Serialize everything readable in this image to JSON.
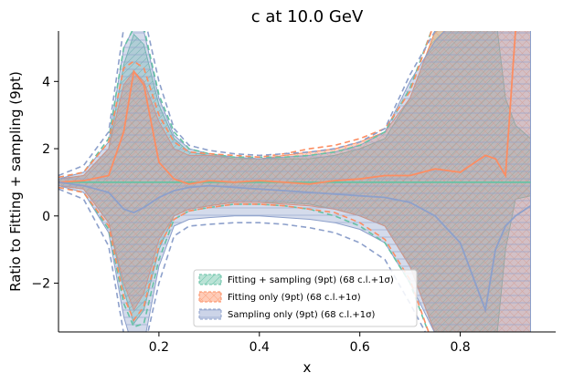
{
  "chart_data": {
    "type": "area",
    "title": "c at 10.0 GeV",
    "xlabel": "x",
    "ylabel": "Ratio to Fitting + sampling (9pt)",
    "xlim": [
      0.0,
      0.99
    ],
    "ylim": [
      -3.45,
      5.5
    ],
    "xticks": [
      0.2,
      0.4,
      0.6,
      0.8
    ],
    "xtick_labels": [
      "0.2",
      "0.4",
      "0.6",
      "0.8"
    ],
    "yticks": [
      -2,
      0,
      2,
      4
    ],
    "ytick_labels": [
      "−2",
      "0",
      "2",
      "4"
    ],
    "grid": false,
    "legend_position": "lower-center",
    "x": [
      0.0,
      0.05,
      0.1,
      0.13,
      0.15,
      0.17,
      0.2,
      0.23,
      0.26,
      0.3,
      0.35,
      0.4,
      0.45,
      0.5,
      0.55,
      0.6,
      0.65,
      0.7,
      0.75,
      0.8,
      0.85,
      0.87,
      0.89,
      0.91,
      0.94
    ],
    "series": [
      {
        "name": "Fitting + sampling (9pt) (68 c.l.+1σ)",
        "color": "#66c2a5",
        "hatch": "diagonal",
        "central": [
          1.0,
          1.0,
          1.0,
          1.0,
          1.0,
          1.0,
          1.0,
          1.0,
          1.0,
          1.0,
          1.0,
          1.0,
          1.0,
          1.0,
          1.0,
          1.0,
          1.0,
          1.0,
          1.0,
          1.0,
          1.0,
          1.0,
          1.0,
          1.0,
          1.0
        ],
        "upper": [
          1.1,
          1.2,
          2.0,
          4.5,
          5.4,
          5.1,
          3.3,
          2.3,
          1.9,
          1.8,
          1.7,
          1.7,
          1.7,
          1.7,
          1.8,
          2.0,
          2.3,
          3.5,
          5.5,
          6.0,
          6.0,
          6.0,
          3.5,
          2.7,
          2.3
        ],
        "lower": [
          0.9,
          0.8,
          -0.2,
          -2.2,
          -3.2,
          -2.8,
          -1.0,
          0.0,
          0.2,
          0.3,
          0.4,
          0.4,
          0.4,
          0.35,
          0.2,
          0.0,
          -0.3,
          -1.5,
          -3.5,
          -4.0,
          -4.0,
          -4.0,
          -1.0,
          0.5,
          0.6
        ],
        "dashed_upper": [
          1.15,
          1.3,
          2.3,
          5.0,
          5.6,
          5.6,
          3.6,
          2.5,
          2.0,
          1.85,
          1.75,
          1.75,
          1.75,
          1.8,
          1.9,
          2.1,
          2.5,
          3.8,
          5.8,
          6.0,
          6.0,
          6.0,
          6.0,
          6.0,
          6.0
        ],
        "dashed_lower": [
          0.85,
          0.7,
          -0.4,
          -2.6,
          -3.3,
          -3.2,
          -1.3,
          -0.1,
          0.15,
          0.25,
          0.35,
          0.35,
          0.3,
          0.2,
          0.0,
          -0.3,
          -0.8,
          -2.0,
          -4.0,
          -4.0,
          -4.0,
          -4.0,
          -4.0,
          -4.0,
          -4.0
        ]
      },
      {
        "name": "Fitting only (9pt) (68 c.l.+1σ)",
        "color": "#fc8d62",
        "hatch": "cross",
        "central": [
          1.0,
          1.05,
          1.2,
          2.5,
          4.3,
          3.9,
          1.6,
          1.1,
          0.95,
          1.05,
          1.0,
          1.05,
          1.0,
          0.95,
          1.05,
          1.1,
          1.2,
          1.2,
          1.4,
          1.3,
          1.8,
          1.7,
          1.2,
          5.5,
          6.0
        ],
        "upper": [
          1.1,
          1.2,
          2.0,
          3.9,
          4.3,
          4.0,
          2.8,
          2.0,
          1.8,
          1.8,
          1.75,
          1.7,
          1.8,
          1.9,
          2.0,
          2.2,
          2.5,
          3.5,
          5.5,
          6.0,
          6.0,
          6.0,
          6.0,
          6.0,
          6.0
        ],
        "lower": [
          0.9,
          0.8,
          -0.2,
          -2.0,
          -2.8,
          -2.3,
          -0.7,
          0.0,
          0.2,
          0.3,
          0.4,
          0.4,
          0.35,
          0.3,
          0.2,
          0.0,
          -0.3,
          -1.5,
          -3.5,
          -4.0,
          -4.0,
          -4.0,
          -4.0,
          -4.0,
          -4.0
        ],
        "dashed_upper": [
          1.15,
          1.3,
          2.2,
          4.4,
          4.6,
          4.4,
          3.0,
          2.2,
          1.9,
          1.85,
          1.8,
          1.75,
          1.85,
          2.0,
          2.1,
          2.3,
          2.6,
          3.7,
          5.8,
          6.0,
          6.0,
          6.0,
          6.0,
          6.0,
          6.0
        ],
        "dashed_lower": [
          0.85,
          0.7,
          -0.3,
          -2.4,
          -3.1,
          -2.7,
          -0.9,
          -0.1,
          0.15,
          0.25,
          0.35,
          0.35,
          0.3,
          0.2,
          0.1,
          -0.2,
          -0.7,
          -1.9,
          -4.0,
          -4.0,
          -4.0,
          -4.0,
          -4.0,
          -4.0,
          -4.0
        ]
      },
      {
        "name": "Sampling only (9pt) (68 c.l.+1σ)",
        "color": "#8da0cb",
        "hatch": "horizontal",
        "central": [
          1.0,
          0.9,
          0.7,
          0.2,
          0.1,
          0.25,
          0.55,
          0.75,
          0.85,
          0.9,
          0.85,
          0.8,
          0.75,
          0.7,
          0.65,
          0.6,
          0.55,
          0.4,
          0.0,
          -0.8,
          -2.8,
          -1.0,
          -0.3,
          0.0,
          0.3
        ],
        "upper": [
          1.1,
          1.3,
          2.2,
          5.0,
          5.6,
          5.5,
          3.5,
          2.4,
          2.0,
          1.85,
          1.75,
          1.7,
          1.75,
          1.8,
          1.9,
          2.1,
          2.5,
          4.0,
          5.2,
          6.0,
          6.0,
          6.0,
          6.0,
          6.0,
          6.0
        ],
        "lower": [
          0.9,
          0.7,
          -0.5,
          -3.0,
          -4.0,
          -3.8,
          -1.5,
          -0.3,
          -0.1,
          -0.05,
          0.0,
          0.0,
          -0.05,
          -0.1,
          -0.2,
          -0.4,
          -0.8,
          -2.0,
          -3.5,
          -4.0,
          -4.0,
          -4.0,
          -4.0,
          -4.0,
          -4.0
        ],
        "dashed_upper": [
          1.2,
          1.5,
          2.5,
          5.6,
          6.0,
          6.0,
          4.0,
          2.6,
          2.1,
          1.95,
          1.85,
          1.8,
          1.85,
          1.9,
          2.0,
          2.2,
          2.6,
          4.2,
          5.5,
          6.0,
          6.0,
          6.0,
          6.0,
          6.0,
          6.0
        ],
        "dashed_lower": [
          0.8,
          0.5,
          -0.9,
          -3.5,
          -4.0,
          -4.0,
          -2.0,
          -0.6,
          -0.3,
          -0.25,
          -0.2,
          -0.2,
          -0.25,
          -0.35,
          -0.5,
          -0.8,
          -1.3,
          -2.6,
          -4.0,
          -4.0,
          -4.0,
          -4.0,
          -4.0,
          -4.0,
          -4.0
        ]
      }
    ]
  }
}
